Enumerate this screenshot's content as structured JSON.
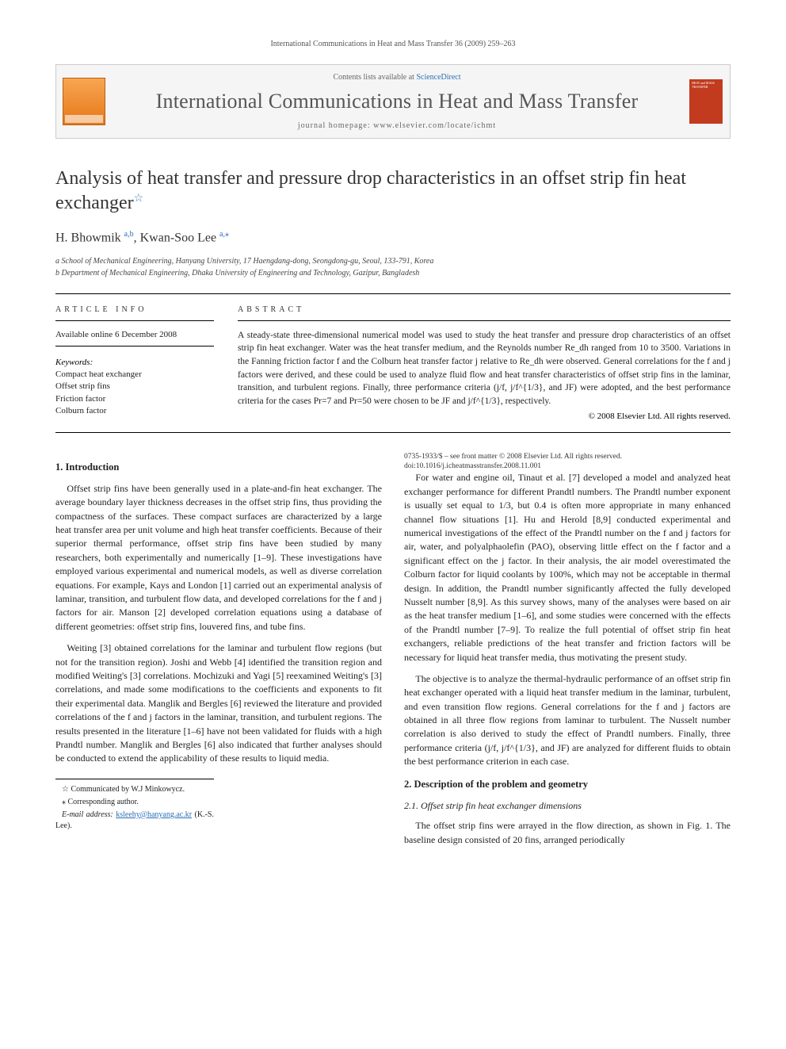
{
  "running_head": "International Communications in Heat and Mass Transfer 36 (2009) 259–263",
  "masthead": {
    "contents_prefix": "Contents lists available at ",
    "contents_link": "ScienceDirect",
    "journal_name": "International Communications in Heat and Mass Transfer",
    "homepage_prefix": "journal homepage: ",
    "homepage_url": "www.elsevier.com/locate/ichmt",
    "cover_text": "HEAT and MASS TRANSFER"
  },
  "title": "Analysis of heat transfer and pressure drop characteristics in an offset strip fin heat exchanger",
  "star": "☆",
  "authors_html": "H. Bhowmik",
  "author1_sup": "a,b",
  "author2": "Kwan-Soo Lee",
  "author2_sup": "a,",
  "corr_mark": "⁎",
  "affiliations": {
    "a": "a School of Mechanical Engineering, Hanyang University, 17 Haengdang-dong, Seongdong-gu, Seoul, 133-791, Korea",
    "b": "b Department of Mechanical Engineering, Dhaka University of Engineering and Technology, Gazipur, Bangladesh"
  },
  "info": {
    "head": "ARTICLE INFO",
    "available": "Available online 6 December 2008",
    "keywords_label": "Keywords:",
    "keywords": [
      "Compact heat exchanger",
      "Offset strip fins",
      "Friction factor",
      "Colburn factor"
    ]
  },
  "abstract": {
    "head": "ABSTRACT",
    "text": "A steady-state three-dimensional numerical model was used to study the heat transfer and pressure drop characteristics of an offset strip fin heat exchanger. Water was the heat transfer medium, and the Reynolds number Re_dh ranged from 10 to 3500. Variations in the Fanning friction factor f and the Colburn heat transfer factor j relative to Re_dh were observed. General correlations for the f and j factors were derived, and these could be used to analyze fluid flow and heat transfer characteristics of offset strip fins in the laminar, transition, and turbulent regions. Finally, three performance criteria (j/f, j/f^{1/3}, and JF) were adopted, and the best performance criteria for the cases Pr=7 and Pr=50 were chosen to be JF and j/f^{1/3}, respectively.",
    "copyright": "© 2008 Elsevier Ltd. All rights reserved."
  },
  "sections": {
    "s1_title": "1. Introduction",
    "s1_p1": "Offset strip fins have been generally used in a plate-and-fin heat exchanger. The average boundary layer thickness decreases in the offset strip fins, thus providing the compactness of the surfaces. These compact surfaces are characterized by a large heat transfer area per unit volume and high heat transfer coefficients. Because of their superior thermal performance, offset strip fins have been studied by many researchers, both experimentally and numerically [1–9]. These investigations have employed various experimental and numerical models, as well as diverse correlation equations. For example, Kays and London [1] carried out an experimental analysis of laminar, transition, and turbulent flow data, and developed correlations for the f and j factors for air. Manson [2] developed correlation equations using a database of different geometries: offset strip fins, louvered fins, and tube fins.",
    "s1_p2": "Weiting [3] obtained correlations for the laminar and turbulent flow regions (but not for the transition region). Joshi and Webb [4] identified the transition region and modified Weiting's [3] correlations. Mochizuki and Yagi [5] reexamined Weiting's [3] correlations, and made some modifications to the coefficients and exponents to fit their experimental data. Manglik and Bergles [6] reviewed the literature and provided correlations of the f and j factors in the laminar, transition, and turbulent regions. The results presented in the literature [1–6] have not been validated for fluids with a high Prandtl number. Manglik and Bergles [6] also indicated that further analyses should be conducted to extend the applicability of these results to liquid media.",
    "s1_p3": "For water and engine oil, Tinaut et al. [7] developed a model and analyzed heat exchanger performance for different Prandtl numbers. The Prandtl number exponent is usually set equal to 1/3, but 0.4 is often more appropriate in many enhanced channel flow situations [1]. Hu and Herold [8,9] conducted experimental and numerical investigations of the effect of the Prandtl number on the f and j factors for air, water, and polyalphaolefin (PAO), observing little effect on the f factor and a significant effect on the j factor. In their analysis, the air model overestimated the Colburn factor for liquid coolants by 100%, which may not be acceptable in thermal design. In addition, the Prandtl number significantly affected the fully developed Nusselt number [8,9]. As this survey shows, many of the analyses were based on air as the heat transfer medium [1–6], and some studies were concerned with the effects of the Prandtl number [7–9]. To realize the full potential of offset strip fin heat exchangers, reliable predictions of the heat transfer and friction factors will be necessary for liquid heat transfer media, thus motivating the present study.",
    "s1_p4": "The objective is to analyze the thermal-hydraulic performance of an offset strip fin heat exchanger operated with a liquid heat transfer medium in the laminar, turbulent, and even transition flow regions. General correlations for the f and j factors are obtained in all three flow regions from laminar to turbulent. The Nusselt number correlation is also derived to study the effect of Prandtl numbers. Finally, three performance criteria (j/f, j/f^{1/3}, and JF) are analyzed for different fluids to obtain the best performance criterion in each case.",
    "s2_title": "2. Description of the problem and geometry",
    "s21_title": "2.1. Offset strip fin heat exchanger dimensions",
    "s21_p1": "The offset strip fins were arrayed in the flow direction, as shown in Fig. 1. The baseline design consisted of 20 fins, arranged periodically"
  },
  "footnotes": {
    "communicated": "☆ Communicated by W.J Minkowycz.",
    "corresponding": "⁎ Corresponding author.",
    "email_label": "E-mail address:",
    "email": "ksleehy@hanyang.ac.kr",
    "email_who": "(K.-S. Lee)."
  },
  "footer": {
    "line1": "0735-1933/$ – see front matter © 2008 Elsevier Ltd. All rights reserved.",
    "line2": "doi:10.1016/j.icheatmasstransfer.2008.11.001"
  },
  "colors": {
    "link": "#2a6fb5",
    "elsevier_orange": "#e67817",
    "cover_red": "#c23b1e"
  }
}
